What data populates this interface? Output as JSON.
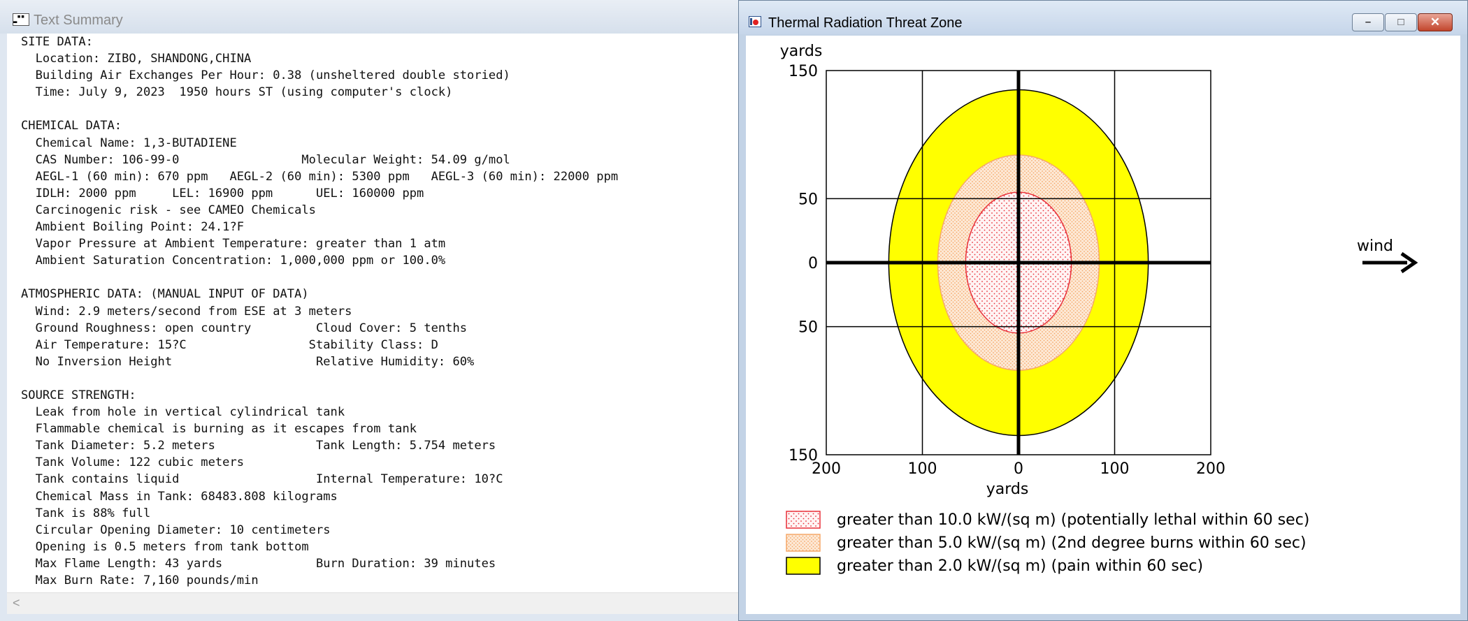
{
  "text_window": {
    "title": "Text Summary",
    "lines": [
      "SITE DATA:",
      "  Location: ZIBO, SHANDONG,CHINA",
      "  Building Air Exchanges Per Hour: 0.38 (unsheltered double storied)",
      "  Time: July 9, 2023  1950 hours ST (using computer's clock)",
      "",
      "CHEMICAL DATA:",
      "  Chemical Name: 1,3-BUTADIENE",
      "  CAS Number: 106-99-0                 Molecular Weight: 54.09 g/mol",
      "  AEGL-1 (60 min): 670 ppm   AEGL-2 (60 min): 5300 ppm   AEGL-3 (60 min): 22000 ppm",
      "  IDLH: 2000 ppm     LEL: 16900 ppm      UEL: 160000 ppm",
      "  Carcinogenic risk - see CAMEO Chemicals",
      "  Ambient Boiling Point: 24.1?F",
      "  Vapor Pressure at Ambient Temperature: greater than 1 atm",
      "  Ambient Saturation Concentration: 1,000,000 ppm or 100.0%",
      "",
      "ATMOSPHERIC DATA: (MANUAL INPUT OF DATA)",
      "  Wind: 2.9 meters/second from ESE at 3 meters",
      "  Ground Roughness: open country         Cloud Cover: 5 tenths",
      "  Air Temperature: 15?C                 Stability Class: D",
      "  No Inversion Height                    Relative Humidity: 60%",
      "",
      "SOURCE STRENGTH:",
      "  Leak from hole in vertical cylindrical tank",
      "  Flammable chemical is burning as it escapes from tank",
      "  Tank Diameter: 5.2 meters              Tank Length: 5.754 meters",
      "  Tank Volume: 122 cubic meters",
      "  Tank contains liquid                   Internal Temperature: 10?C",
      "  Chemical Mass in Tank: 68483.808 kilograms",
      "  Tank is 88% full",
      "  Circular Opening Diameter: 10 centimeters",
      "  Opening is 0.5 meters from tank bottom",
      "  Max Flame Length: 43 yards             Burn Duration: 39 minutes",
      "  Max Burn Rate: 7,160 pounds/min"
    ]
  },
  "plot_window": {
    "title": "Thermal Radiation Threat Zone",
    "buttons": {
      "minimize": "–",
      "maximize": "□",
      "close": "✕"
    }
  },
  "chart_data": {
    "type": "threat-zone",
    "ylabel": "yards",
    "xlabel": "yards",
    "x_ticks": [
      {
        "value": -200,
        "label": "200"
      },
      {
        "value": -100,
        "label": "100"
      },
      {
        "value": 0,
        "label": "0"
      },
      {
        "value": 100,
        "label": "100"
      },
      {
        "value": 200,
        "label": "200"
      }
    ],
    "y_ticks": [
      {
        "value": 150,
        "label": "150"
      },
      {
        "value": 50,
        "label": "50"
      },
      {
        "value": 0,
        "label": "0"
      },
      {
        "value": -50,
        "label": "50"
      },
      {
        "value": -150,
        "label": "150"
      }
    ],
    "xlim": [
      -200,
      200
    ],
    "ylim": [
      -150,
      150
    ],
    "wind_label": "wind",
    "zones": [
      {
        "label": "greater than 2.0 kW/(sq m) (pain within 60 sec)",
        "radius": 135,
        "color": "#ffff00",
        "pattern": "solid"
      },
      {
        "label": "greater than 5.0 kW/(sq m) (2nd degree burns within 60 sec)",
        "radius": 84,
        "color": "#f5a86a",
        "pattern": "orange-dots"
      },
      {
        "label": "greater than 10.0 kW/(sq m) (potentially lethal within 60 sec)",
        "radius": 55,
        "color": "#e8303a",
        "pattern": "red-dots"
      }
    ]
  }
}
